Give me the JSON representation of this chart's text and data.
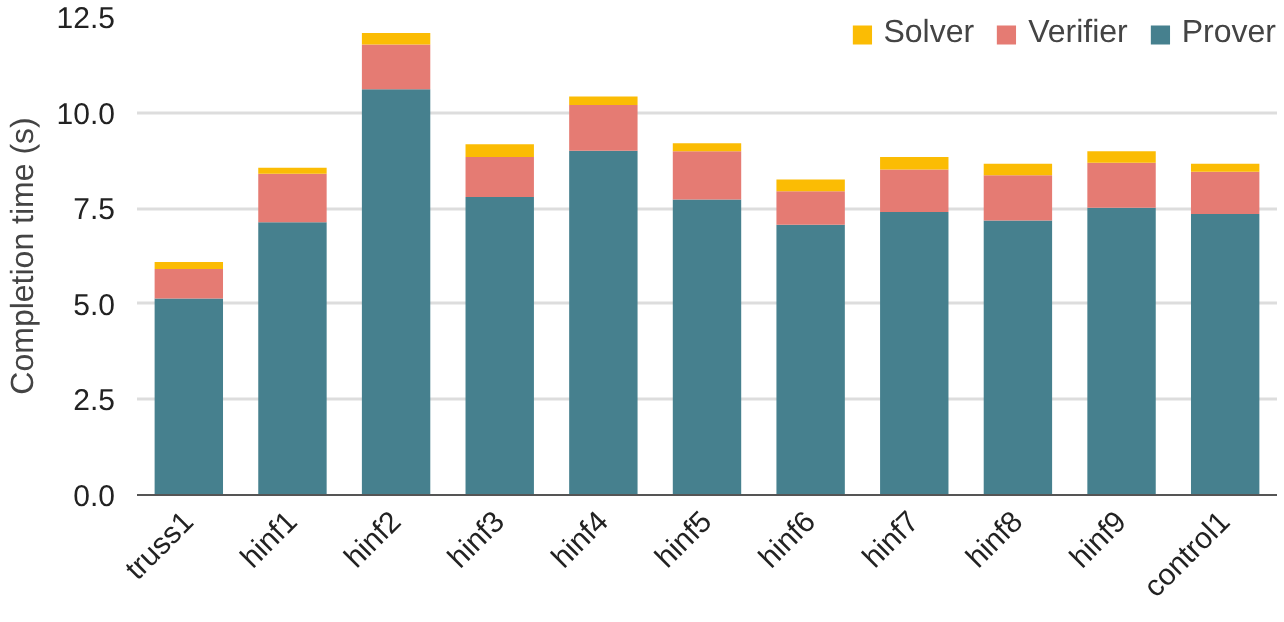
{
  "chart_data": {
    "type": "bar",
    "stacked": true,
    "ylabel": "Completion time (s)",
    "categories": [
      "truss1",
      "hinf1",
      "hinf2",
      "hinf3",
      "hinf4",
      "hinf5",
      "hinf6",
      "hinf7",
      "hinf8",
      "hinf9",
      "control1"
    ],
    "series": [
      {
        "name": "Prover",
        "color": "#46808e",
        "values": [
          5.14,
          7.13,
          10.61,
          7.79,
          9.0,
          7.73,
          7.07,
          7.4,
          7.18,
          7.51,
          7.35
        ]
      },
      {
        "name": "Verifier",
        "color": "#e57b73",
        "values": [
          0.77,
          1.27,
          1.17,
          1.05,
          1.2,
          1.26,
          0.87,
          1.11,
          1.18,
          1.18,
          1.1
        ]
      },
      {
        "name": "Solver",
        "color": "#fbbc04",
        "values": [
          0.18,
          0.16,
          0.3,
          0.33,
          0.22,
          0.21,
          0.31,
          0.33,
          0.3,
          0.3,
          0.21
        ]
      }
    ],
    "ylim": [
      0,
      12.5
    ],
    "yticks": [
      {
        "value": 0,
        "label": "0.0"
      },
      {
        "value": 2.5,
        "label": "2.5"
      },
      {
        "value": 5,
        "label": "5.0"
      },
      {
        "value": 7.5,
        "label": "7.5"
      },
      {
        "value": 10,
        "label": "10.0"
      },
      {
        "value": 12.5,
        "label": "12.5"
      }
    ],
    "grid": "y",
    "legend": "top right"
  }
}
